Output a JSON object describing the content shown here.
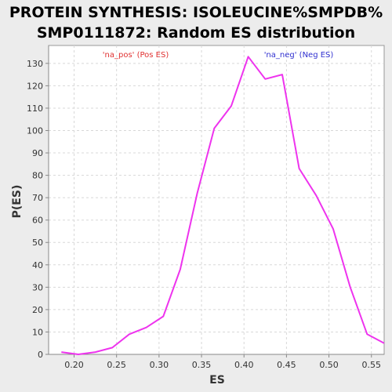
{
  "chart_data": {
    "type": "line",
    "title_lines": [
      "PROTEIN SYNTHESIS: ISOLEUCINE%SMPDB%",
      "SMP0111872: Random ES distribution"
    ],
    "xlabel": "ES",
    "ylabel": "P(ES)",
    "xlim": [
      0.17,
      0.565
    ],
    "ylim": [
      0,
      138
    ],
    "xticks": [
      0.2,
      0.25,
      0.3,
      0.35,
      0.4,
      0.45,
      0.5,
      0.55
    ],
    "xtick_labels": [
      "0.20",
      "0.25",
      "0.30",
      "0.35",
      "0.40",
      "0.45",
      "0.50",
      "0.55"
    ],
    "yticks": [
      0,
      10,
      20,
      30,
      40,
      50,
      60,
      70,
      80,
      90,
      100,
      110,
      120,
      130
    ],
    "ytick_labels": [
      "0",
      "10",
      "20",
      "30",
      "40",
      "50",
      "60",
      "70",
      "80",
      "90",
      "100",
      "110",
      "120",
      "130"
    ],
    "grid": true,
    "legend": [
      {
        "label": "'na_pos' (Pos ES)",
        "color": "#e03030"
      },
      {
        "label": "'na_neg' (Neg ES)",
        "color": "#3030d0"
      }
    ],
    "series": [
      {
        "color": "#ee33ee",
        "x": [
          0.185,
          0.205,
          0.225,
          0.245,
          0.265,
          0.285,
          0.305,
          0.325,
          0.345,
          0.365,
          0.385,
          0.405,
          0.425,
          0.445,
          0.465,
          0.485,
          0.505,
          0.525,
          0.545,
          0.565
        ],
        "y": [
          1,
          0,
          1,
          3,
          9,
          12,
          17,
          38,
          72,
          101,
          111,
          133,
          123,
          125,
          83,
          71,
          56,
          30,
          9,
          5
        ]
      }
    ]
  }
}
